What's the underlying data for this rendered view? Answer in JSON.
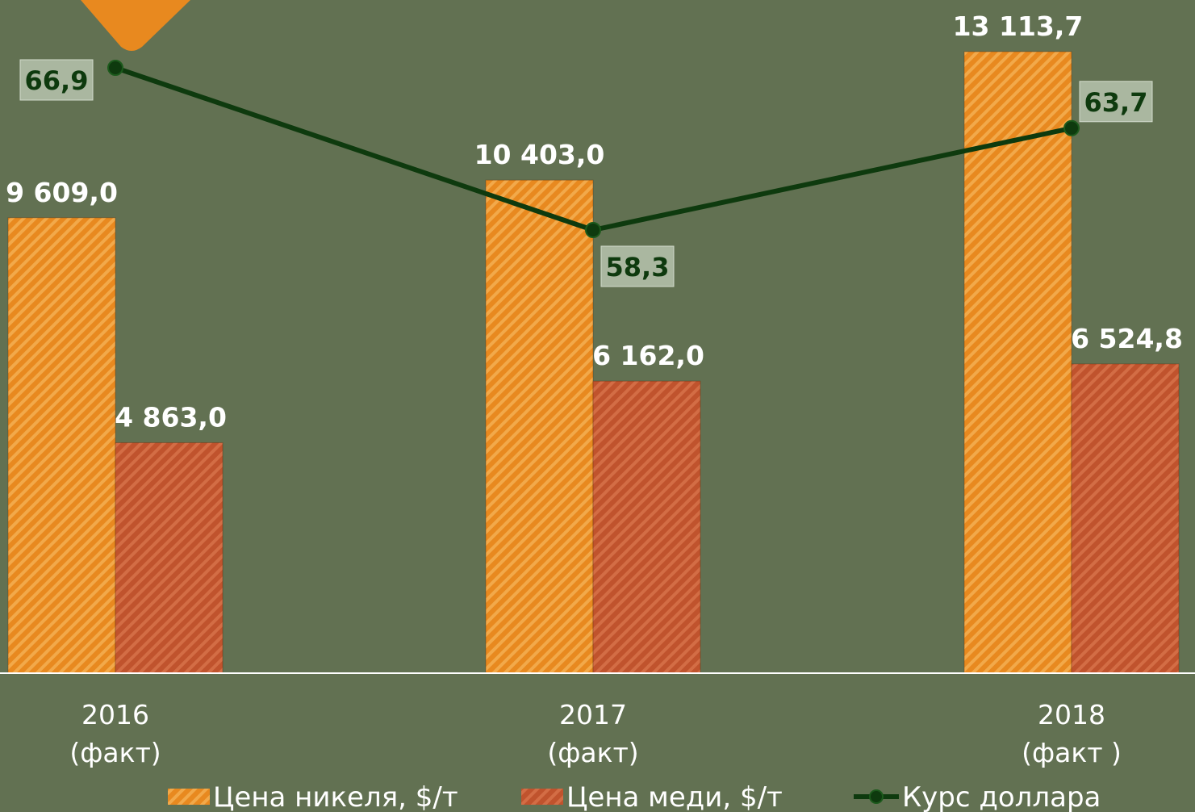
{
  "colors": {
    "background": "#627152",
    "nickel": "#e8891f",
    "nickel_stripe": "#f2a94a",
    "copper": "#c0532d",
    "copper_stripe": "#d36d45",
    "line": "#0e3a0e",
    "label_box": "#aab7a0",
    "logo_accent": "#e8891f"
  },
  "chart_data": {
    "type": "bar",
    "categories": [
      [
        "2016",
        "(факт)"
      ],
      [
        "2017",
        "(факт)"
      ],
      [
        "2018",
        "(факт )"
      ]
    ],
    "series": [
      {
        "name": "Цена никеля, $/т",
        "kind": "bar",
        "values": [
          9609.0,
          10403.0,
          13113.7
        ],
        "labels": [
          "9 609,0",
          "10 403,0",
          "13 113,7"
        ]
      },
      {
        "name": "Цена меди, $/т",
        "kind": "bar",
        "values": [
          4863.0,
          6162.0,
          6524.8
        ],
        "labels": [
          "4 863,0",
          "6 162,0",
          "6 524,8"
        ]
      },
      {
        "name": "Курс доллара",
        "kind": "line",
        "values": [
          66.9,
          58.3,
          63.7
        ],
        "labels": [
          "66,9",
          "58,3",
          "63,7"
        ]
      }
    ]
  }
}
